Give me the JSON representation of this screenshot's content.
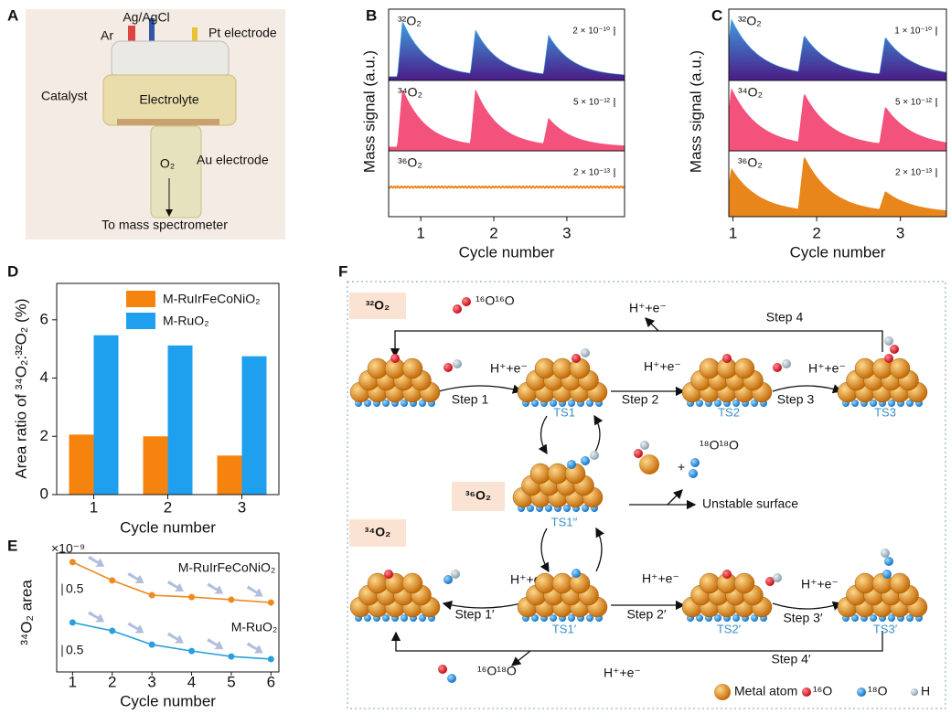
{
  "panelA": {
    "label": "A",
    "labels": {
      "ar": "Ar",
      "ref": "Ag/AgCl",
      "pt": "Pt electrode",
      "cat": "Catalyst",
      "ele": "Electrolyte",
      "au": "Au electrode",
      "o2": "O₂",
      "ms": "To mass spectrometer"
    }
  },
  "chart_data": [
    {
      "panel": "B",
      "type": "trace",
      "ylabel": "Mass signal (a.u.)",
      "xlabel": "Cycle number",
      "xlim": [
        0.56,
        3.79
      ],
      "xticks": [
        1,
        2,
        3
      ],
      "peak_x": [
        0.75,
        1.75,
        2.75
      ],
      "traces": [
        {
          "name": "³²O₂",
          "scale": "2 × 10⁻¹⁰",
          "peaks": [
            0.82,
            0.65,
            0.58
          ],
          "color": "#3d9be0",
          "color2": "#4a1c86"
        },
        {
          "name": "³⁴O₂",
          "scale": "5 × 10⁻¹²",
          "peaks": [
            0.87,
            0.82,
            0.39
          ],
          "color": "#f2527c"
        },
        {
          "name": "³⁶O₂",
          "scale": "2 × 10⁻¹³",
          "peaks": [
            0,
            0,
            0
          ],
          "color": "#e8861c"
        }
      ]
    },
    {
      "panel": "C",
      "type": "trace",
      "ylabel": "Mass signal (a.u.)",
      "xlabel": "Cycle number",
      "xlim": [
        0.95,
        3.55
      ],
      "xticks": [
        1,
        2,
        3
      ],
      "peak_x": [
        0.98,
        1.85,
        2.82
      ],
      "traces": [
        {
          "name": "³²O₂",
          "scale": "1 × 10⁻¹⁰",
          "peaks": [
            0.85,
            0.55,
            0.55
          ],
          "color": "#3d9be0",
          "color2": "#4a1c86"
        },
        {
          "name": "³⁴O₂",
          "scale": "5 × 10⁻¹²",
          "peaks": [
            0.88,
            0.74,
            0.56
          ],
          "color": "#f2527c"
        },
        {
          "name": "³⁶O₂",
          "scale": "2 × 10⁻¹³",
          "peaks": [
            0.72,
            0.86,
            0.3
          ],
          "color": "#e8861c"
        }
      ]
    },
    {
      "panel": "D",
      "type": "bar",
      "ylabel": "Area ratio of ³⁴O₂:³²O₂ (%)",
      "xlabel": "Cycle number",
      "categories": [
        "1",
        "2",
        "3"
      ],
      "ylim": [
        0,
        7.25
      ],
      "yticks": [
        0,
        2,
        4,
        6
      ],
      "series": [
        {
          "name": "M-RuIrFeCoNiO₂",
          "color": "#f7830f",
          "values": [
            2.06,
            2.0,
            1.34
          ]
        },
        {
          "name": "M-RuO₂",
          "color": "#1ea0ef",
          "values": [
            5.47,
            5.12,
            4.75
          ]
        }
      ]
    },
    {
      "panel": "E",
      "type": "line",
      "ylabel": "³⁴O₂ area",
      "xlabel": "Cycle number",
      "unit": "×10⁻⁹",
      "x": [
        1,
        2,
        3,
        4,
        5,
        6
      ],
      "xlim": [
        0.6,
        6.2
      ],
      "xticks": [
        1,
        2,
        3,
        4,
        5,
        6
      ],
      "ylim": [
        0,
        5
      ],
      "series": [
        {
          "name": "M-RuIrFeCoNiO₂",
          "color": "#ee8a22",
          "values": [
            4.62,
            3.85,
            3.23,
            3.15,
            3.04,
            2.92
          ],
          "scalebar": 0.5
        },
        {
          "name": "M-RuO₂",
          "color": "#2a9fdc",
          "values": [
            2.08,
            1.73,
            1.15,
            0.88,
            0.65,
            0.54
          ],
          "scalebar": 0.5
        }
      ]
    }
  ],
  "panelF": {
    "label": "F",
    "labels": {
      "o32": "³²O₂",
      "o36": "³⁶O₂",
      "o34": "³⁴O₂",
      "m1616": "¹⁶O¹⁶O",
      "m1818": "¹⁸O¹⁸O",
      "m1618": "¹⁶O¹⁸O",
      "plus": "+",
      "unstable": "Unstable surface",
      "he4": "H⁺+e⁻",
      "he1": "H⁺+e⁻",
      "he2": "H⁺+e⁻",
      "he3": "H⁺+e⁻",
      "he1p": "H⁺+e⁻",
      "he2p": "H⁺+e⁻",
      "he3p": "H⁺+e⁻",
      "he4p": "H⁺+e⁻",
      "s1": "Step 1",
      "s2": "Step 2",
      "s3": "Step 3",
      "s4": "Step 4",
      "s1p": "Step 1′",
      "s2p": "Step 2′",
      "s3p": "Step 3′",
      "s4p": "Step 4′",
      "ts1": "TS1",
      "ts2": "TS2",
      "ts3": "TS3",
      "ts1pp": "TS1′′",
      "ts1p": "TS1′",
      "ts2p": "TS2′",
      "ts3p": "TS3′",
      "metal": "Metal atom",
      "o16": "¹⁶O",
      "o18": "¹⁸O",
      "h": "H"
    }
  }
}
